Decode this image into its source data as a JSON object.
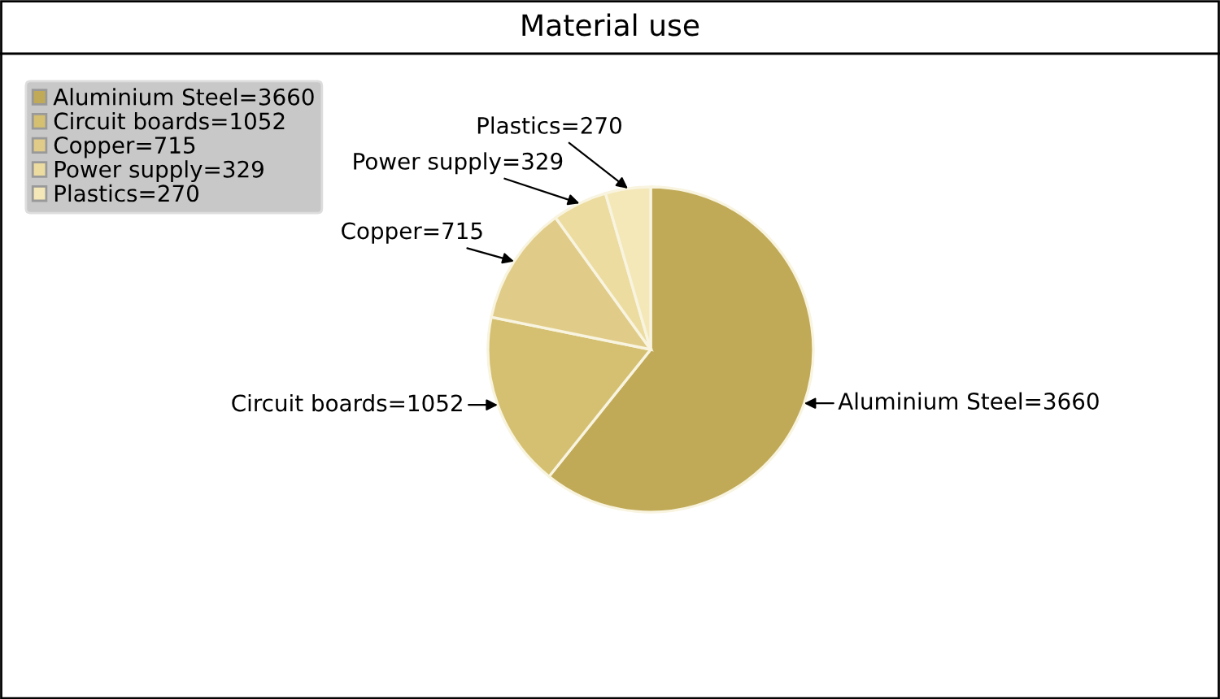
{
  "chart_data": {
    "type": "pie",
    "title": "Material use",
    "categories": [
      "Aluminium Steel=3660",
      "Circuit boards=1052",
      "Copper=715",
      "Power supply=329",
      "Plastics=270"
    ],
    "values": [
      3660,
      1052,
      715,
      329,
      270
    ],
    "colors": [
      "#c0aa58",
      "#d4c070",
      "#e0cc88",
      "#ecdca0",
      "#f4e8b8"
    ],
    "legend": "top left"
  }
}
